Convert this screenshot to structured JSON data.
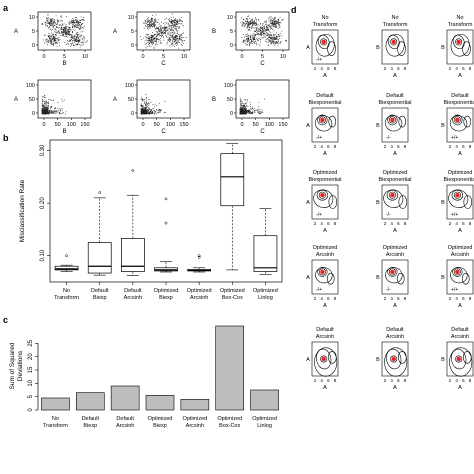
{
  "panel_labels": {
    "a": "a",
    "b": "b",
    "c": "c",
    "d": "d"
  },
  "panel_a": {
    "density_row": [
      {
        "xlabel": "B",
        "ylabel": "A",
        "xticks": [
          "0",
          "5",
          "10"
        ],
        "yticks": [
          "0",
          "5",
          "10"
        ]
      },
      {
        "xlabel": "C",
        "ylabel": "A",
        "xticks": [
          "0",
          "5",
          "10"
        ],
        "yticks": [
          "0",
          "5",
          "10"
        ]
      },
      {
        "xlabel": "C",
        "ylabel": "B",
        "xticks": [
          "0",
          "5",
          "10"
        ],
        "yticks": [
          "0",
          "5",
          "10"
        ]
      }
    ],
    "raw_row": [
      {
        "xlabel": "B",
        "ylabel": "A",
        "xticks": [
          "0",
          "50",
          "100",
          "150"
        ],
        "yticks": [
          "0",
          "50",
          "100"
        ]
      },
      {
        "xlabel": "C",
        "ylabel": "A",
        "xticks": [
          "0",
          "50",
          "100",
          "150"
        ],
        "yticks": [
          "0",
          "50",
          "100"
        ]
      },
      {
        "xlabel": "C",
        "ylabel": "B",
        "xticks": [
          "0",
          "50",
          "100",
          "150"
        ],
        "yticks": [
          "0",
          "50",
          "100"
        ]
      }
    ]
  },
  "panel_d": {
    "column_axes": {
      "x": "A",
      "y": [
        "A",
        "B",
        "B"
      ]
    },
    "rows": [
      {
        "titles": [
          [
            "No",
            "Transform"
          ],
          [
            "No",
            "Transform"
          ],
          [
            "No",
            "Transform"
          ]
        ],
        "signs": [
          "-/+",
          "",
          ""
        ]
      },
      {
        "titles": [
          [
            "Default",
            "Biexponential"
          ],
          [
            "Default",
            "Biexponential"
          ],
          [
            "Default",
            "Biexponential"
          ]
        ],
        "signs": [
          "-/+",
          "-/-",
          "+/+"
        ]
      },
      {
        "titles": [
          [
            "Optimized",
            "Biexponential"
          ],
          [
            "Optimized",
            "Biexponential"
          ],
          [
            "Optimized",
            "Biexponential"
          ]
        ],
        "signs": [
          "-/+",
          "-/-",
          "+/+"
        ]
      },
      {
        "titles": [
          [
            "Optimized",
            "Arcsinh"
          ],
          [
            "Optimized",
            "Arcsinh"
          ],
          [
            "Optimized",
            "Arcsinh"
          ]
        ],
        "signs": [
          "-/+",
          "-/-",
          "+/+"
        ]
      },
      {
        "titles": [
          [
            "Default",
            "Arcsinh"
          ],
          [
            "Default",
            "Arcsinh"
          ],
          [
            "Default",
            "Arcsinh"
          ]
        ],
        "signs": [
          "",
          "",
          ""
        ]
      }
    ],
    "xticks": [
      "0",
      "2",
      "4",
      "6",
      "8"
    ]
  },
  "chart_data": [
    {
      "type": "boxplot",
      "panel": "b",
      "ylabel": "Misclassification Rate",
      "ylim": [
        0.05,
        0.32
      ],
      "yticks": [
        0.1,
        0.2,
        0.3
      ],
      "categories": [
        [
          "No",
          "Transform"
        ],
        [
          "Default",
          "Biexp"
        ],
        [
          "Default",
          "Arcsinh"
        ],
        [
          "Optimized",
          "Biexp"
        ],
        [
          "Optimized",
          "Arcsinh"
        ],
        [
          "Optimized",
          "Box-Cox"
        ],
        [
          "Optimized",
          "Linlog"
        ]
      ],
      "boxes": [
        {
          "min": 0.07,
          "q1": 0.073,
          "median": 0.075,
          "q3": 0.08,
          "max": 0.082,
          "outliers": [
            0.1
          ]
        },
        {
          "min": 0.063,
          "q1": 0.067,
          "median": 0.08,
          "q3": 0.125,
          "max": 0.21,
          "outliers": [
            0.22
          ]
        },
        {
          "min": 0.062,
          "q1": 0.07,
          "median": 0.08,
          "q3": 0.133,
          "max": 0.215,
          "outliers": [
            0.262
          ]
        },
        {
          "min": 0.069,
          "q1": 0.071,
          "median": 0.073,
          "q3": 0.077,
          "max": 0.089,
          "outliers": [
            0.208,
            0.162
          ]
        },
        {
          "min": 0.069,
          "q1": 0.071,
          "median": 0.072,
          "q3": 0.074,
          "max": 0.077,
          "outliers": [
            0.097,
            0.1
          ]
        },
        {
          "min": 0.073,
          "q1": 0.195,
          "median": 0.25,
          "q3": 0.294,
          "max": 0.313,
          "outliers": []
        },
        {
          "min": 0.064,
          "q1": 0.07,
          "median": 0.077,
          "q3": 0.138,
          "max": 0.19,
          "outliers": []
        }
      ]
    },
    {
      "type": "bar",
      "panel": "c",
      "ylabel": "Sum of Squared Deviations",
      "ylim": [
        0,
        33
      ],
      "yticks": [
        0,
        5,
        10,
        15,
        20,
        25
      ],
      "categories": [
        [
          "No",
          "Transform"
        ],
        [
          "Default",
          "Biexp"
        ],
        [
          "Default",
          "Arcsinh"
        ],
        [
          "Optimized",
          "Biexp"
        ],
        [
          "Optimized",
          "Arcsinh"
        ],
        [
          "Optimized",
          "Box-Cox"
        ],
        [
          "Optimized",
          "Linlog"
        ]
      ],
      "values": [
        4.5,
        6.5,
        9,
        5.5,
        4,
        31.5,
        7.5
      ]
    }
  ]
}
